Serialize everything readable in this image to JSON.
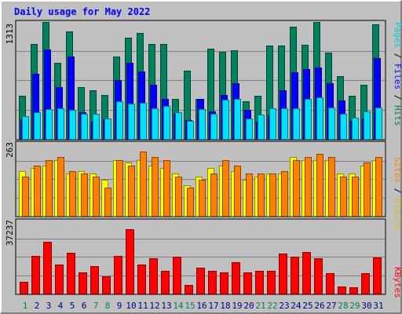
{
  "chart_data": [
    {
      "type": "bar",
      "title": "Daily usage for May 2022",
      "categories": [
        "1",
        "2",
        "3",
        "4",
        "5",
        "6",
        "7",
        "8",
        "9",
        "10",
        "11",
        "12",
        "13",
        "14",
        "15",
        "16",
        "17",
        "18",
        "19",
        "20",
        "21",
        "22",
        "23",
        "24",
        "25",
        "26",
        "27",
        "28",
        "29",
        "30",
        "31"
      ],
      "weekend_days": [
        "1",
        "7",
        "8",
        "14",
        "15",
        "21",
        "22",
        "28",
        "29"
      ],
      "ymax_label": "1313",
      "ylim": [
        0,
        1313
      ],
      "axis_label_parts": [
        "Pages",
        " / ",
        "Files",
        " / ",
        "Hits"
      ],
      "series": [
        {
          "name": "Hits",
          "color": "#00805c",
          "values": [
            480,
            1060,
            1300,
            850,
            1200,
            580,
            540,
            490,
            920,
            1130,
            1180,
            1060,
            1060,
            450,
            760,
            450,
            1010,
            970,
            990,
            420,
            480,
            1040,
            1040,
            1250,
            1050,
            1300,
            960,
            700,
            480,
            600,
            1280
          ]
        },
        {
          "name": "Files",
          "color": "#0000ff",
          "values": [
            220,
            730,
            1000,
            580,
            920,
            300,
            190,
            220,
            660,
            850,
            750,
            600,
            450,
            280,
            210,
            450,
            310,
            490,
            620,
            320,
            190,
            260,
            540,
            740,
            780,
            800,
            620,
            430,
            200,
            230,
            900
          ]
        },
        {
          "name": "Pages",
          "color": "#00e0ff",
          "values": [
            250,
            300,
            330,
            340,
            320,
            280,
            280,
            230,
            420,
            390,
            400,
            340,
            370,
            300,
            200,
            330,
            280,
            440,
            450,
            230,
            270,
            340,
            340,
            340,
            450,
            460,
            350,
            280,
            240,
            310,
            350
          ]
        }
      ]
    },
    {
      "type": "bar",
      "ymax_label": "263",
      "ylim": [
        0,
        263
      ],
      "axis_label_parts": [
        "Sites",
        " / ",
        "Visits"
      ],
      "series": [
        {
          "name": "Visits",
          "color": "#ffff00",
          "values": [
            160,
            170,
            180,
            200,
            150,
            160,
            150,
            130,
            200,
            190,
            200,
            180,
            170,
            150,
            110,
            140,
            170,
            180,
            160,
            130,
            140,
            150,
            150,
            210,
            200,
            200,
            200,
            150,
            150,
            180,
            200
          ]
        },
        {
          "name": "Sites",
          "color": "#ff8000",
          "values": [
            140,
            180,
            200,
            210,
            160,
            150,
            140,
            100,
            200,
            180,
            230,
            210,
            200,
            140,
            100,
            130,
            150,
            200,
            180,
            150,
            150,
            150,
            160,
            200,
            210,
            220,
            210,
            140,
            140,
            190,
            210
          ]
        }
      ]
    },
    {
      "type": "bar",
      "ymax_label": "37237",
      "ylim": [
        0,
        37237
      ],
      "axis_label_parts": [
        "KBytes"
      ],
      "series": [
        {
          "name": "KBytes",
          "color": "#ff0000",
          "values": [
            6100,
            19200,
            26200,
            14500,
            20600,
            10500,
            13800,
            8700,
            18900,
            32600,
            14600,
            18000,
            11400,
            18700,
            4300,
            13000,
            11500,
            10800,
            15700,
            10800,
            11300,
            11600,
            20200,
            18600,
            21100,
            17900,
            10400,
            3600,
            3300,
            10300,
            18400
          ]
        }
      ]
    }
  ],
  "colors": {
    "background": "#c0c0c0",
    "title": "#0000ff",
    "weekday_label": "#00008b",
    "weekend_label": "#00805c",
    "axis_pages": "#00d0d0",
    "axis_files": "#0000ff",
    "axis_hits": "#00805c",
    "axis_sites": "#ff8000",
    "axis_visits": "#d0c000",
    "axis_kbytes": "#ff0000"
  }
}
